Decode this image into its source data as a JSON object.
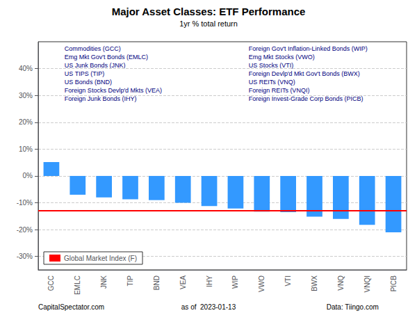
{
  "chart_data": {
    "type": "bar",
    "title": "Major Asset Classes: ETF Performance",
    "subtitle": "1yr % total return",
    "categories": [
      "GCC",
      "EMLC",
      "JNK",
      "TIP",
      "BND",
      "VEA",
      "IHY",
      "WIP",
      "VWO",
      "VTI",
      "BWX",
      "VNQ",
      "VNQI",
      "PICB"
    ],
    "values": [
      5.2,
      -7.0,
      -8.0,
      -8.7,
      -9.0,
      -10.0,
      -11.2,
      -12.1,
      -13.3,
      -13.5,
      -15.2,
      -16.0,
      -18.2,
      -21.0
    ],
    "color": "#3399FF",
    "reference_line": {
      "name": "Global Market Index (F)",
      "value": -13.0,
      "color": "#FF0000"
    },
    "annotations": [
      [
        "Commodities (GCC)",
        "Emg Mkt Gov't Bonds (EMLC)",
        "US Junk Bonds (JNK)",
        "US TIPS (TIP)",
        "US Bonds (BND)",
        "Foreign Stocks Devlp'd Mkts (VEA)",
        "Foreign Junk Bonds (IHY)"
      ],
      [
        "Foreign Gov't Inflation-Linked Bonds (WIP)",
        "Emg Mkt Stocks (VWO)",
        "US Stocks (VTI)",
        "Foreign Devlp'd Mkt Gov't Bonds (BWX)",
        "US REITs (VNQ)",
        "Foreign REITs (VNQI)",
        "Foreign Invest-Grade Corp Bonds (PICB)"
      ]
    ],
    "annotation_color": "#000080",
    "footer": [
      "CapitalSpectator.com",
      "as of  2023-01-13",
      "Data: Tiingo.com"
    ],
    "ylim": [
      -35,
      50
    ],
    "yticks": [
      {
        "value": -30,
        "label": "-30%"
      },
      {
        "value": -20,
        "label": "-20%"
      },
      {
        "value": -10,
        "label": "-10%"
      },
      {
        "value": 0,
        "label": "0%"
      },
      {
        "value": 10,
        "label": "10%"
      },
      {
        "value": 20,
        "label": "20%"
      },
      {
        "value": 30,
        "label": "30%"
      },
      {
        "value": 40,
        "label": "40%"
      }
    ],
    "grid": true,
    "legend": "lower left"
  }
}
